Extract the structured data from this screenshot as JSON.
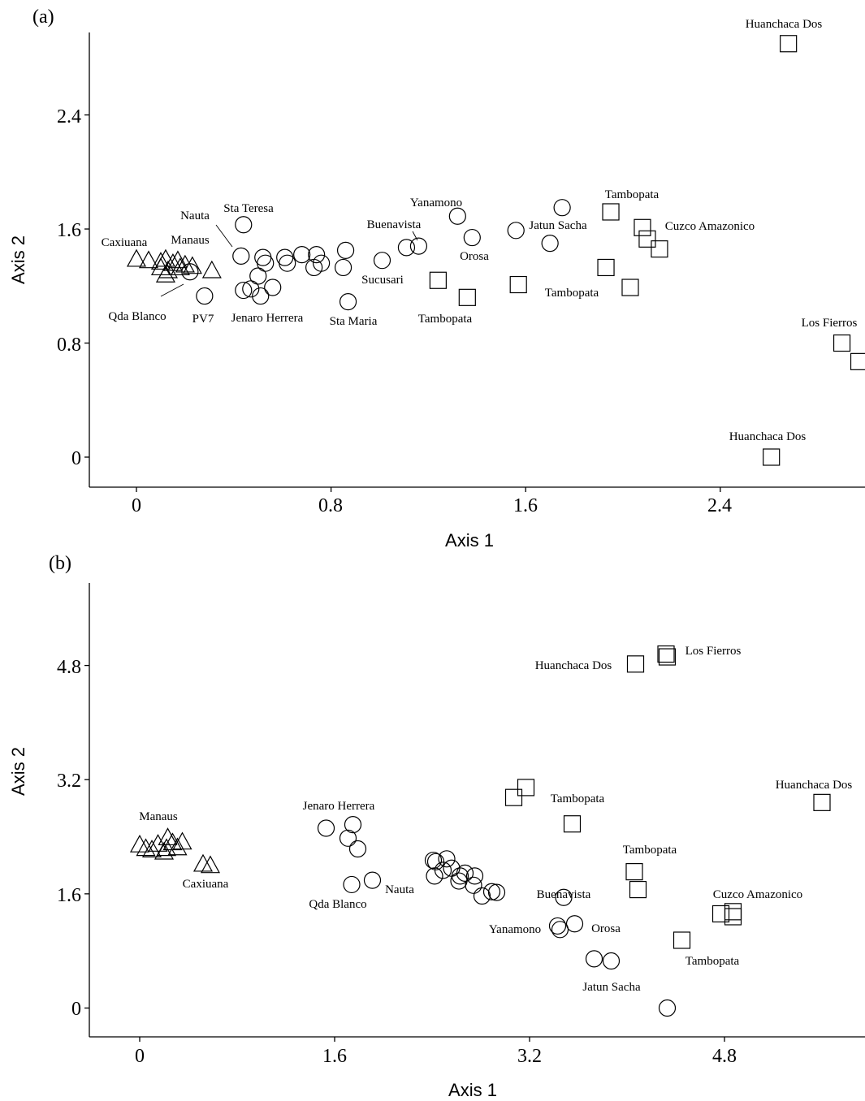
{
  "chart_data": [
    {
      "panel": "(a)",
      "type": "scatter",
      "xlabel": "Axis 1",
      "ylabel": "Axis 2",
      "xlim": [
        -0.2,
        3.0
      ],
      "ylim": [
        -0.2,
        3.0
      ],
      "xticks": [
        0,
        0.8,
        1.6,
        2.4
      ],
      "xtick_labels": [
        "0",
        "0.8",
        "1.6",
        "2.4"
      ],
      "yticks": [
        0,
        0.8,
        1.6,
        2.4
      ],
      "ytick_labels": [
        "0",
        "0.8",
        "1.6",
        "2.4"
      ],
      "series": [
        {
          "marker": "triangle",
          "points": [
            [
              0.0,
              1.39
            ],
            [
              0.05,
              1.38
            ],
            [
              0.1,
              1.37
            ],
            [
              0.12,
              1.39
            ],
            [
              0.15,
              1.36
            ],
            [
              0.17,
              1.38
            ],
            [
              0.1,
              1.33
            ],
            [
              0.13,
              1.31
            ],
            [
              0.2,
              1.35
            ],
            [
              0.23,
              1.34
            ],
            [
              0.31,
              1.31
            ],
            [
              0.12,
              1.28
            ],
            [
              0.18,
              1.33
            ]
          ]
        },
        {
          "marker": "circle",
          "points": [
            [
              0.22,
              1.3
            ],
            [
              0.28,
              1.13
            ],
            [
              0.43,
              1.41
            ],
            [
              0.44,
              1.63
            ],
            [
              0.44,
              1.17
            ],
            [
              0.47,
              1.18
            ],
            [
              0.5,
              1.27
            ],
            [
              0.51,
              1.13
            ],
            [
              0.52,
              1.4
            ],
            [
              0.53,
              1.36
            ],
            [
              0.56,
              1.19
            ],
            [
              0.61,
              1.4
            ],
            [
              0.62,
              1.36
            ],
            [
              0.68,
              1.42
            ],
            [
              0.73,
              1.33
            ],
            [
              0.74,
              1.42
            ],
            [
              0.76,
              1.36
            ],
            [
              0.85,
              1.33
            ],
            [
              0.86,
              1.45
            ],
            [
              0.87,
              1.09
            ],
            [
              1.01,
              1.38
            ],
            [
              1.11,
              1.47
            ],
            [
              1.16,
              1.48
            ],
            [
              1.32,
              1.69
            ],
            [
              1.38,
              1.54
            ],
            [
              1.56,
              1.59
            ],
            [
              1.7,
              1.5
            ],
            [
              1.75,
              1.75
            ]
          ]
        },
        {
          "marker": "square",
          "points": [
            [
              1.24,
              1.24
            ],
            [
              1.36,
              1.12
            ],
            [
              1.57,
              1.21
            ],
            [
              1.93,
              1.33
            ],
            [
              1.95,
              1.72
            ],
            [
              2.03,
              1.19
            ],
            [
              2.08,
              1.61
            ],
            [
              2.1,
              1.53
            ],
            [
              2.15,
              1.46
            ],
            [
              2.68,
              2.9
            ],
            [
              2.61,
              0.0
            ],
            [
              2.9,
              0.8
            ],
            [
              2.97,
              0.67
            ]
          ]
        }
      ],
      "annotations": [
        "Huanchaca Dos",
        "Tambopata",
        "Cuzco Amazonico",
        "Yanamono",
        "Jatun Sacha",
        "Buenavista",
        "Orosa",
        "Sucusari",
        "Tambopata",
        "Tambopata",
        "Sta Teresa",
        "Nauta",
        "Manaus",
        "Caxiuana",
        "Qda Blanco",
        "PV7",
        "Jenaro Herrera",
        "Sta Maria",
        "Los Fierros",
        "Huanchaca Dos"
      ]
    },
    {
      "panel": "(b)",
      "type": "scatter",
      "xlabel": "Axis 1",
      "ylabel": "Axis 2",
      "xlim": [
        -0.4,
        5.8
      ],
      "ylim": [
        -0.4,
        6.0
      ],
      "xticks": [
        0,
        1.6,
        3.2,
        4.8
      ],
      "xtick_labels": [
        "0",
        "1.6",
        "3.2",
        "4.8"
      ],
      "yticks": [
        0,
        1.6,
        3.2,
        4.8
      ],
      "ytick_labels": [
        "0",
        "1.6",
        "3.2",
        "4.8"
      ],
      "series": [
        {
          "marker": "triangle",
          "points": [
            [
              0.0,
              2.29
            ],
            [
              0.05,
              2.24
            ],
            [
              0.1,
              2.22
            ],
            [
              0.15,
              2.3
            ],
            [
              0.2,
              2.19
            ],
            [
              0.23,
              2.39
            ],
            [
              0.27,
              2.32
            ],
            [
              0.31,
              2.25
            ],
            [
              0.35,
              2.33
            ],
            [
              0.52,
              2.02
            ],
            [
              0.58,
              2.0
            ],
            [
              0.22,
              2.24
            ]
          ]
        },
        {
          "marker": "circle",
          "points": [
            [
              1.53,
              2.52
            ],
            [
              1.71,
              2.38
            ],
            [
              1.75,
              2.57
            ],
            [
              1.79,
              2.23
            ],
            [
              1.74,
              1.73
            ],
            [
              1.91,
              1.79
            ],
            [
              2.41,
              2.07
            ],
            [
              2.43,
              2.05
            ],
            [
              2.52,
              2.09
            ],
            [
              2.42,
              1.85
            ],
            [
              2.49,
              1.93
            ],
            [
              2.56,
              1.96
            ],
            [
              2.63,
              1.85
            ],
            [
              2.67,
              1.89
            ],
            [
              2.75,
              1.85
            ],
            [
              2.62,
              1.78
            ],
            [
              2.74,
              1.72
            ],
            [
              2.89,
              1.63
            ],
            [
              2.93,
              1.62
            ],
            [
              2.81,
              1.57
            ],
            [
              3.48,
              1.55
            ],
            [
              3.43,
              1.15
            ],
            [
              3.45,
              1.1
            ],
            [
              3.57,
              1.18
            ],
            [
              3.73,
              0.69
            ],
            [
              3.87,
              0.66
            ],
            [
              4.33,
              0.0
            ]
          ]
        },
        {
          "marker": "square",
          "points": [
            [
              3.07,
              2.95
            ],
            [
              3.17,
              3.09
            ],
            [
              3.55,
              2.58
            ],
            [
              4.06,
              1.91
            ],
            [
              4.09,
              1.66
            ],
            [
              4.07,
              4.82
            ],
            [
              4.32,
              4.96
            ],
            [
              4.33,
              4.92
            ],
            [
              4.45,
              0.95
            ],
            [
              4.77,
              1.32
            ],
            [
              4.87,
              1.35
            ],
            [
              4.87,
              1.28
            ],
            [
              5.6,
              2.88
            ]
          ]
        }
      ],
      "annotations": [
        "Huanchaca Dos",
        "Los Fierros",
        "Tambopata",
        "Huanchaca Dos",
        "Jenaro Herrera",
        "Manaus",
        "Caxiuana",
        "Qda Blanco",
        "Nauta",
        "Tambopata",
        "Buenavista",
        "Orosa",
        "Yanamono",
        "Cuzco Amazonico",
        "Tambopata",
        "Jatun Sacha"
      ]
    }
  ]
}
